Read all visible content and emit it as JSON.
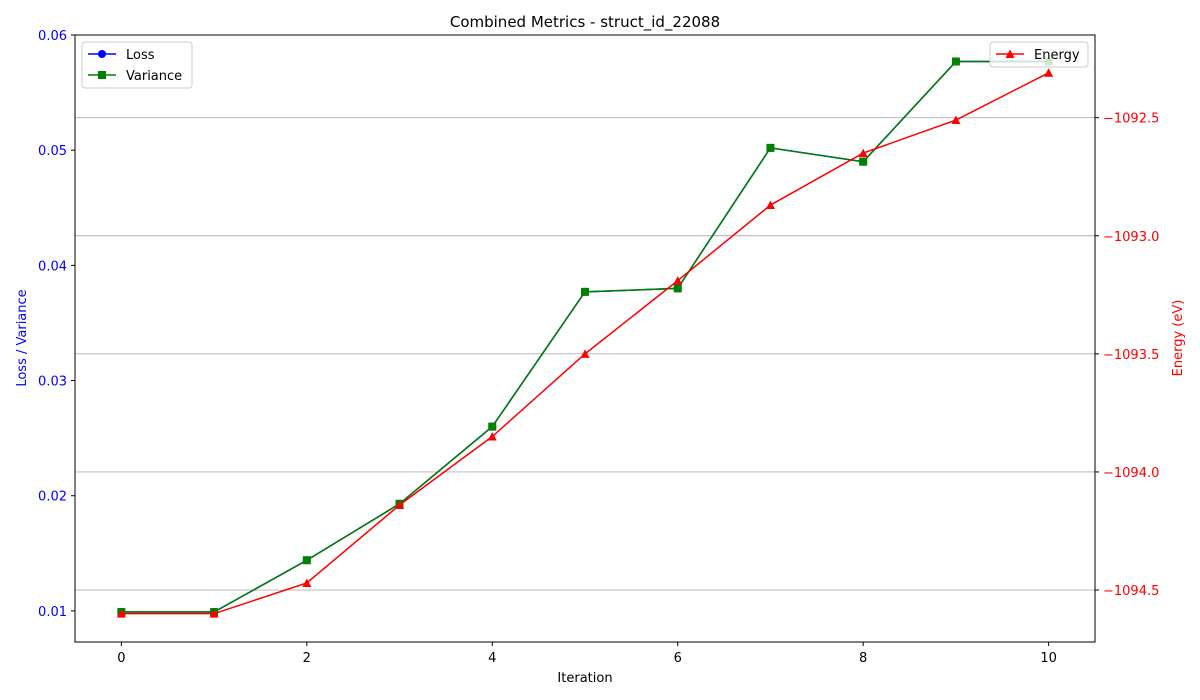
{
  "chart_data": {
    "type": "line",
    "title": "Combined Metrics - struct_id_22088",
    "xlabel": "Iteration",
    "ylabel_left": "Loss / Variance",
    "ylabel_right": "Energy (eV)",
    "x": [
      0,
      1,
      2,
      3,
      4,
      5,
      6,
      7,
      8,
      9,
      10
    ],
    "xlim": [
      -0.5,
      10.5
    ],
    "xticks": [
      0,
      2,
      4,
      6,
      8,
      10
    ],
    "ylim_left": [
      0.0073,
      0.06
    ],
    "yticks_left": [
      0.01,
      0.02,
      0.03,
      0.04,
      0.05,
      0.06
    ],
    "ylim_right": [
      -1094.72,
      -1092.15
    ],
    "yticks_right": [
      -1094.5,
      -1094.0,
      -1093.5,
      -1093.0,
      -1092.5
    ],
    "yticks_right_labels": [
      "−1094.5",
      "−1094.0",
      "−1093.5",
      "−1093.0",
      "−1092.5"
    ],
    "grid": "right-axis horizontal",
    "left_axis_color": "#0000ff",
    "right_axis_color": "#ff0000",
    "series": [
      {
        "name": "Loss",
        "axis": "left",
        "color": "#0000ff",
        "marker": "circle",
        "values": [
          0.0099,
          0.0099,
          0.0144,
          0.0193,
          0.026,
          0.0377,
          0.038,
          0.0502,
          0.049,
          0.0577,
          0.0577
        ]
      },
      {
        "name": "Variance",
        "axis": "left",
        "color": "#008000",
        "marker": "square",
        "values": [
          0.0099,
          0.0099,
          0.0144,
          0.0193,
          0.026,
          0.0377,
          0.038,
          0.0502,
          0.049,
          0.0577,
          0.0577
        ]
      },
      {
        "name": "Energy",
        "axis": "right",
        "color": "#ff0000",
        "marker": "triangle",
        "values": [
          -1094.6,
          -1094.6,
          -1094.47,
          -1094.14,
          -1093.85,
          -1093.5,
          -1093.19,
          -1092.87,
          -1092.65,
          -1092.51,
          -1092.31
        ]
      }
    ],
    "legend_left": {
      "position": "upper-left",
      "entries": [
        "Loss",
        "Variance"
      ]
    },
    "legend_right": {
      "position": "upper-right",
      "entries": [
        "Energy"
      ]
    }
  }
}
